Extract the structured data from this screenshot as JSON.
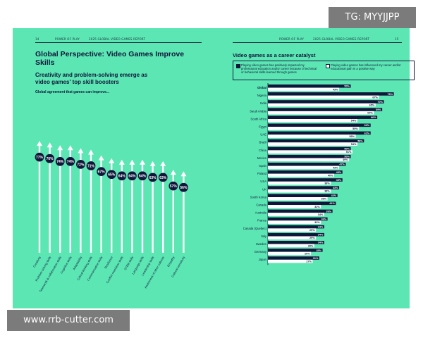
{
  "overlay": {
    "top_badge": "TG: MYYJJPP",
    "bottom_badge": "www.rrb-cutter.com"
  },
  "header": {
    "left_page_number": "14",
    "left_section": "POWER OF PLAY",
    "left_report": "2025 GLOBAL VIDEO GAMES REPORT",
    "right_section": "POWER OF PLAY",
    "right_report": "2025 GLOBAL VIDEO GAMES REPORT",
    "right_page_number": "15"
  },
  "left_page": {
    "title": "Global Perspective: Video Games Improve Skills",
    "subtitle": "Creativity and problem-solving emerge as video games' top skill boosters",
    "chart_heading": "Global agreement that games can improve..."
  },
  "right_page": {
    "title": "Video games as a career catalyst",
    "legend_dark": "Playing video games has positively impacted my professional education and/or career because of technical or behavioral skills learned through games",
    "legend_light": "Playing video games has influenced my career and/or educational path in a positive way"
  },
  "colors": {
    "background": "#5ce6b3",
    "navy": "#10163a",
    "white": "#ffffff"
  },
  "chart_data": [
    {
      "type": "bar",
      "title": "Global agreement that games can improve...",
      "categories": [
        "Creativity",
        "Problem-solving skills",
        "Teamwork & collaboration skills",
        "Cognitive skills",
        "Adaptability",
        "Critical thinking skills",
        "Communication skills",
        "Resilience",
        "Conflict resolution skills",
        "STEM skills",
        "Language skills",
        "Leadership skills",
        "Awareness of other cultures",
        "Empathy",
        "Cultural sensitivity"
      ],
      "values": [
        77,
        76,
        74,
        74,
        72,
        71,
        67,
        65,
        64,
        64,
        64,
        63,
        63,
        57,
        56
      ],
      "value_labels": [
        "77%",
        "76%",
        "74%",
        "74%",
        "72%",
        "71%",
        "67%",
        "65%",
        "64%",
        "64%",
        "64%",
        "63%",
        "63%",
        "57%",
        "56%"
      ],
      "ylim": [
        0,
        100
      ]
    },
    {
      "type": "bar",
      "title": "Video games as a career catalyst",
      "orientation": "horizontal",
      "categories": [
        "Global",
        "Nigeria",
        "India",
        "Saudi Arabia",
        "South Africa",
        "Egypt",
        "UAE",
        "Brazil",
        "China",
        "Mexico",
        "Spain",
        "Poland",
        "USA",
        "UK",
        "South Korea",
        "Canada",
        "Australia",
        "France",
        "Canada (Quebec)",
        "Italy",
        "Sweden",
        "Germany",
        "Japan"
      ],
      "series": [
        {
          "name": "Playing video games has positively impacted my professional education and/or career because of technical or behavioral skills learned through games",
          "values": [
            50,
            76,
            70,
            69,
            66,
            62,
            62,
            58,
            50,
            50,
            47,
            45,
            45,
            43,
            42,
            41,
            39,
            36,
            34,
            34,
            34,
            33,
            31
          ],
          "value_labels": [
            "50%",
            "76%",
            "70%",
            "69%",
            "66%",
            "62%",
            "62%",
            "58%",
            "50%",
            "50%",
            "47%",
            "45%",
            "45%",
            "43%",
            "42%",
            "41%",
            "39%",
            "36%",
            "34%",
            "34%",
            "34%",
            "33%",
            "31%"
          ]
        },
        {
          "name": "Playing video games has influenced my career and/or educational path in a positive way",
          "values": [
            43,
            67,
            65,
            64,
            54,
            55,
            53,
            54,
            51,
            49,
            43,
            40,
            38,
            38,
            36,
            32,
            34,
            32,
            29,
            29,
            28,
            26,
            27
          ],
          "value_labels": [
            "43%",
            "67%",
            "65%",
            "64%",
            "54%",
            "55%",
            "53%",
            "54%",
            "51%",
            "49%",
            "43%",
            "40%",
            "38%",
            "38%",
            "36%",
            "32%",
            "34%",
            "32%",
            "29%",
            "29%",
            "28%",
            "26%",
            "27%"
          ]
        }
      ]
    }
  ]
}
